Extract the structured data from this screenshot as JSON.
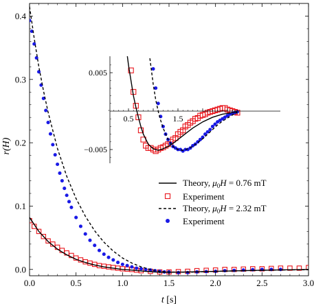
{
  "chart_data": [
    {
      "panel": "main",
      "type": "line",
      "xlabel": "t [s]",
      "ylabel": "r(H)",
      "xlim": [
        0.0,
        3.0
      ],
      "ylim": [
        -0.01,
        0.42
      ],
      "xticks": [
        0.0,
        0.5,
        1.0,
        1.5,
        2.0,
        2.5,
        3.0
      ],
      "xtick_labels": [
        "0.0",
        "0.5",
        "1.0",
        "1.5",
        "2.0",
        "2.5",
        "3.0"
      ],
      "yticks": [
        0.0,
        0.1,
        0.2,
        0.3,
        0.4
      ],
      "ytick_labels": [
        "0.0",
        "0.1",
        "0.2",
        "0.3",
        "0.4"
      ],
      "grid": false,
      "legend_position": "lower-right",
      "series": [
        {
          "name": "Theory, μ0H = 0.76 mT",
          "style": "solid",
          "color": "#000000",
          "x": [
            0.0,
            0.1,
            0.2,
            0.3,
            0.4,
            0.5,
            0.6,
            0.7,
            0.8,
            0.9,
            1.0,
            1.1,
            1.2,
            1.3,
            1.4,
            1.5,
            1.7,
            2.0,
            2.3,
            2.6,
            3.0
          ],
          "y": [
            0.082,
            0.06,
            0.044,
            0.032,
            0.023,
            0.016,
            0.011,
            0.007,
            0.004,
            0.002,
            0.0,
            -0.001,
            -0.0025,
            -0.0035,
            -0.0045,
            -0.0045,
            -0.004,
            -0.003,
            -0.002,
            -0.001,
            0.0
          ]
        },
        {
          "name": "Experiment",
          "marker": "open-square",
          "color": "#e8141b",
          "x": [
            0.0,
            0.05,
            0.1,
            0.15,
            0.2,
            0.25,
            0.3,
            0.35,
            0.4,
            0.45,
            0.5,
            0.55,
            0.6,
            0.65,
            0.7,
            0.75,
            0.8,
            0.85,
            0.9,
            0.95,
            1.0,
            1.05,
            1.1,
            1.15,
            1.2,
            1.3,
            1.4,
            1.5,
            1.6,
            1.7,
            1.8,
            1.9,
            2.0,
            2.1,
            2.2,
            2.3,
            2.4,
            2.5,
            2.6,
            2.7,
            2.8,
            2.9,
            3.0
          ],
          "y": [
            0.077,
            0.068,
            0.06,
            0.052,
            0.045,
            0.04,
            0.035,
            0.03,
            0.026,
            0.022,
            0.018,
            0.015,
            0.012,
            0.01,
            0.008,
            0.006,
            0.005,
            0.004,
            0.003,
            0.002,
            0.001,
            0.0005,
            0.0,
            -0.001,
            -0.002,
            -0.003,
            -0.004,
            -0.004,
            -0.0035,
            -0.003,
            -0.002,
            -0.0015,
            -0.001,
            0.0,
            0.0,
            0.0005,
            0.001,
            0.001,
            0.0015,
            0.002,
            0.002,
            0.002,
            0.003
          ]
        },
        {
          "name": "Theory, μ0H = 2.32 mT",
          "style": "dashed",
          "color": "#000000",
          "x": [
            0.0,
            0.05,
            0.1,
            0.15,
            0.2,
            0.3,
            0.4,
            0.5,
            0.6,
            0.7,
            0.8,
            0.9,
            1.0,
            1.1,
            1.2,
            1.3,
            1.4,
            1.5,
            1.7,
            2.0,
            2.3,
            2.6,
            3.0
          ],
          "y": [
            0.415,
            0.365,
            0.32,
            0.282,
            0.248,
            0.191,
            0.147,
            0.112,
            0.084,
            0.061,
            0.043,
            0.029,
            0.018,
            0.01,
            0.004,
            0.0,
            -0.003,
            -0.004,
            -0.0045,
            -0.003,
            -0.002,
            -0.001,
            -0.0005
          ]
        },
        {
          "name": "Experiment",
          "marker": "filled-circle",
          "color": "#1a1ae6",
          "x": [
            0.0,
            0.025,
            0.05,
            0.075,
            0.1,
            0.125,
            0.15,
            0.175,
            0.2,
            0.225,
            0.25,
            0.275,
            0.3,
            0.325,
            0.35,
            0.375,
            0.4,
            0.425,
            0.45,
            0.5,
            0.55,
            0.6,
            0.65,
            0.7,
            0.75,
            0.8,
            0.85,
            0.9,
            0.95,
            1.0,
            1.05,
            1.1,
            1.15,
            1.2,
            1.25,
            1.3,
            1.35,
            1.4,
            1.45,
            1.5,
            1.6,
            1.7,
            1.8,
            1.9,
            2.0,
            2.1,
            2.2,
            2.3,
            2.4,
            2.5,
            2.6,
            2.7
          ],
          "y": [
            0.393,
            0.376,
            0.356,
            0.334,
            0.312,
            0.291,
            0.27,
            0.251,
            0.232,
            0.214,
            0.197,
            0.181,
            0.166,
            0.152,
            0.14,
            0.128,
            0.117,
            0.107,
            0.098,
            0.082,
            0.068,
            0.056,
            0.046,
            0.038,
            0.03,
            0.024,
            0.019,
            0.015,
            0.011,
            0.008,
            0.006,
            0.004,
            0.002,
            0.001,
            0.0,
            -0.001,
            -0.002,
            -0.003,
            -0.004,
            -0.004,
            -0.005,
            -0.005,
            -0.004,
            -0.0035,
            -0.003,
            -0.002,
            -0.0015,
            -0.001,
            -0.0005,
            0.0,
            0.0,
            0.0
          ]
        }
      ]
    },
    {
      "panel": "inset",
      "type": "line",
      "xlim": [
        0.0,
        2.8
      ],
      "ylim": [
        -0.0075,
        0.0075
      ],
      "xticks": [
        0.5,
        1.5
      ],
      "xtick_labels": [
        "0.5",
        "1.5"
      ],
      "yticks": [
        0.005,
        -0.005
      ],
      "ytick_labels": [
        "0.005",
        "−0.005"
      ],
      "grid": false,
      "series": [
        {
          "name": "Theory, μ0H = 0.76 mT",
          "style": "solid",
          "color": "#000000",
          "x": [
            0.47,
            0.5,
            0.55,
            0.6,
            0.65,
            0.7,
            0.75,
            0.8,
            0.9,
            1.0,
            1.1,
            1.2,
            1.3,
            1.4,
            1.5,
            1.6,
            1.7,
            1.8,
            1.9,
            2.0,
            2.1,
            2.2,
            2.3,
            2.4,
            2.5,
            2.6,
            2.7
          ],
          "y": [
            0.0075,
            0.006,
            0.004,
            0.002,
            0.0005,
            -0.0008,
            -0.002,
            -0.003,
            -0.0043,
            -0.0049,
            -0.0051,
            -0.0049,
            -0.0046,
            -0.0042,
            -0.0037,
            -0.0032,
            -0.0027,
            -0.0022,
            -0.0018,
            -0.0014,
            -0.0011,
            -0.0008,
            -0.0006,
            -0.0004,
            -0.0003,
            -0.0002,
            -0.0001
          ]
        },
        {
          "name": "Experiment",
          "marker": "open-square",
          "color": "#e8141b",
          "x": [
            0.55,
            0.6,
            0.65,
            0.7,
            0.75,
            0.8,
            0.85,
            0.9,
            0.95,
            1.0,
            1.05,
            1.1,
            1.15,
            1.2,
            1.25,
            1.3,
            1.35,
            1.4,
            1.45,
            1.5,
            1.55,
            1.6,
            1.65,
            1.7,
            1.75,
            1.8,
            1.85,
            1.9,
            1.95,
            2.0,
            2.05,
            2.1,
            2.15,
            2.2,
            2.25,
            2.3,
            2.35,
            2.4,
            2.45,
            2.5,
            2.55,
            2.6,
            2.65,
            2.7
          ],
          "y": [
            0.0053,
            0.0025,
            0.0007,
            -0.0008,
            -0.0025,
            -0.0037,
            -0.0045,
            -0.0048,
            -0.0048,
            -0.005,
            -0.0052,
            -0.005,
            -0.0048,
            -0.0047,
            -0.0045,
            -0.0043,
            -0.004,
            -0.0037,
            -0.0035,
            -0.003,
            -0.0027,
            -0.0025,
            -0.002,
            -0.0018,
            -0.0015,
            -0.0013,
            -0.001,
            -0.0009,
            -0.0006,
            -0.0005,
            -0.0004,
            -0.0002,
            -0.0001,
            0.0,
            0.0001,
            0.0002,
            0.0003,
            0.0004,
            0.0004,
            0.0002,
            0.0001,
            0.0,
            -0.0001,
            -0.0002
          ]
        },
        {
          "name": "Theory, μ0H = 2.32 mT",
          "style": "dashed",
          "color": "#000000",
          "x": [
            0.92,
            0.95,
            1.0,
            1.05,
            1.1,
            1.15,
            1.2,
            1.3,
            1.4,
            1.5,
            1.6,
            1.7,
            1.8,
            1.9,
            2.0,
            2.1,
            2.2,
            2.3,
            2.4,
            2.5,
            2.6,
            2.7
          ],
          "y": [
            0.0075,
            0.006,
            0.0035,
            0.0015,
            0.0,
            -0.0012,
            -0.0022,
            -0.0037,
            -0.0046,
            -0.005,
            -0.0051,
            -0.0049,
            -0.0046,
            -0.0041,
            -0.0036,
            -0.003,
            -0.0024,
            -0.0018,
            -0.0013,
            -0.0009,
            -0.0005,
            -0.0002
          ]
        },
        {
          "name": "Experiment",
          "marker": "filled-circle",
          "color": "#1a1ae6",
          "x": [
            1.0,
            1.05,
            1.1,
            1.15,
            1.2,
            1.25,
            1.3,
            1.35,
            1.4,
            1.45,
            1.5,
            1.55,
            1.6,
            1.65,
            1.7,
            1.75,
            1.8,
            1.85,
            1.9,
            1.95,
            2.0,
            2.05,
            2.1,
            2.15,
            2.2,
            2.25,
            2.3,
            2.35,
            2.4,
            2.45,
            2.5,
            2.55,
            2.6,
            2.65,
            2.7
          ],
          "y": [
            0.0055,
            0.003,
            0.001,
            -0.0007,
            -0.002,
            -0.003,
            -0.0037,
            -0.0042,
            -0.0046,
            -0.0048,
            -0.005,
            -0.005,
            -0.0052,
            -0.005,
            -0.005,
            -0.0048,
            -0.0045,
            -0.0043,
            -0.004,
            -0.0037,
            -0.0034,
            -0.003,
            -0.0027,
            -0.0024,
            -0.002,
            -0.0017,
            -0.0014,
            -0.0012,
            -0.001,
            -0.0008,
            -0.0006,
            -0.0004,
            -0.0003,
            -0.0002,
            -0.0001
          ]
        }
      ]
    }
  ],
  "legend": [
    {
      "text": "Theory, ",
      "math": "μ",
      "sub": "0",
      "math2": "H",
      "rest": " = 0.76 mT",
      "kind": "solid"
    },
    {
      "text": "Experiment",
      "kind": "open-square"
    },
    {
      "text": "Theory, ",
      "math": "μ",
      "sub": "0",
      "math2": "H",
      "rest": " = 2.32 mT",
      "kind": "dashed"
    },
    {
      "text": "Experiment",
      "kind": "filled-circle"
    }
  ],
  "colors": {
    "red": "#e8141b",
    "blue": "#1a1ae6",
    "black": "#000000"
  }
}
